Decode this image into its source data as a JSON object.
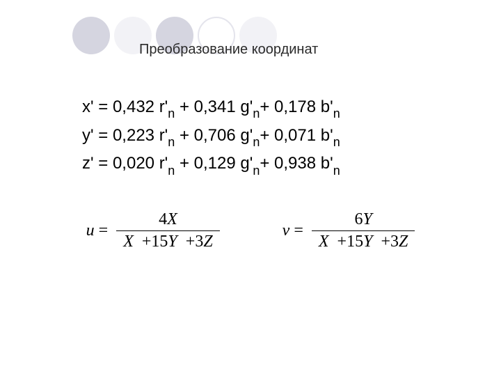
{
  "title": "Преобразование координат",
  "circles": {
    "colors": [
      "#d5d5e0",
      "#f2f2f6",
      "#d5d5e0",
      "#ffffff",
      "#f2f2f6"
    ],
    "border4": "#e4e4ec"
  },
  "eq1": {
    "lhs": "x'",
    "c1": "0,432",
    "v1": "r'",
    "s1": "n",
    "c2": "0,341",
    "v2": "g'",
    "s2": "n",
    "c3": "0,178",
    "v3": "b'",
    "s3": "n"
  },
  "eq2": {
    "lhs": "y'",
    "c1": "0,223",
    "v1": "r'",
    "s1": "n",
    "c2": "0,706",
    "v2": "g'",
    "s2": "n",
    "c3": "0,071",
    "v3": "b'",
    "s3": "n"
  },
  "eq3": {
    "lhs": "z'",
    "c1": "0,020",
    "v1": "r'",
    "s1": "n",
    "c2": "0,129",
    "v2": "g'",
    "s2": "n",
    "c3": "0,938",
    "v3": "b'",
    "s3": "n"
  },
  "formula_u": {
    "lhs": "u",
    "num_coef": "4",
    "num_var": "X",
    "den_t1v": "X",
    "den_t2c": "15",
    "den_t2v": "Y",
    "den_t3c": "3",
    "den_t3v": "Z"
  },
  "formula_v": {
    "lhs": "v",
    "num_coef": "6",
    "num_var": "Y",
    "den_t1v": "X",
    "den_t2c": "15",
    "den_t2v": "Y",
    "den_t3c": "3",
    "den_t3v": "Z"
  }
}
